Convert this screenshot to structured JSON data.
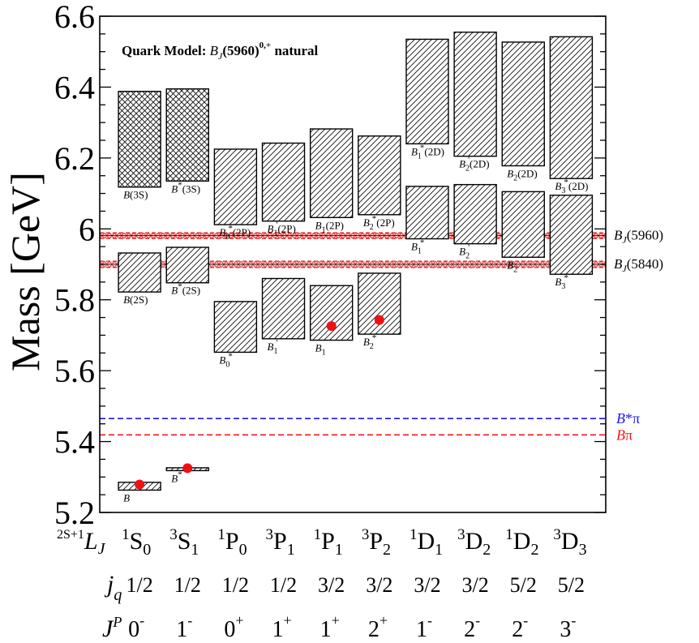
{
  "chart_data": {
    "type": "bar",
    "title": "Quark Model: B_J(5960)^{0,+} natural",
    "title_parts": {
      "prefix": "Quark Model: ",
      "sym": "B",
      "sub": "J",
      "mid": "(5960)",
      "sup": "0,+",
      "suffix": " natural"
    },
    "ylabel": "Mass [GeV]",
    "ylim": [
      5.2,
      6.6
    ],
    "yticks": [
      "5.2",
      "5.4",
      "5.6",
      "5.8",
      "6",
      "6.2",
      "6.4",
      "6.6"
    ],
    "grid": false,
    "columns": [
      {
        "s": "1",
        "L": "S",
        "j": "0",
        "jq": "1/2",
        "P": "0",
        "Ps": "-"
      },
      {
        "s": "3",
        "L": "S",
        "j": "1",
        "jq": "1/2",
        "P": "1",
        "Ps": "-"
      },
      {
        "s": "1",
        "L": "P",
        "j": "0",
        "jq": "1/2",
        "P": "0",
        "Ps": "+"
      },
      {
        "s": "3",
        "L": "P",
        "j": "1",
        "jq": "1/2",
        "P": "1",
        "Ps": "+"
      },
      {
        "s": "1",
        "L": "P",
        "j": "1",
        "jq": "3/2",
        "P": "1",
        "Ps": "+"
      },
      {
        "s": "3",
        "L": "P",
        "j": "2",
        "jq": "3/2",
        "P": "2",
        "Ps": "+"
      },
      {
        "s": "1",
        "L": "D",
        "j": "1",
        "jq": "3/2",
        "P": "1",
        "Ps": "-"
      },
      {
        "s": "3",
        "L": "D",
        "j": "2",
        "jq": "3/2",
        "P": "2",
        "Ps": "-"
      },
      {
        "s": "1",
        "L": "D",
        "j": "2",
        "jq": "5/2",
        "P": "2",
        "Ps": "-"
      },
      {
        "s": "3",
        "L": "D",
        "j": "3",
        "jq": "5/2",
        "P": "3",
        "Ps": "-"
      }
    ],
    "row_labels": {
      "lj_pre": "2S+1",
      "lj_L": "L",
      "lj_J": "J",
      "jq_j": "j",
      "jq_q": "q",
      "jp_J": "J",
      "jp_P": "P"
    },
    "states": [
      {
        "col": 0,
        "low": 5.263,
        "high": 5.285,
        "hatch": "diag",
        "label": {
          "b": "B",
          "sub": "",
          "sup": "",
          "tail": ""
        },
        "label_pos": "below"
      },
      {
        "col": 1,
        "low": 5.318,
        "high": 5.326,
        "hatch": "diag",
        "label": {
          "b": "B",
          "sub": "",
          "sup": "*",
          "tail": ""
        },
        "label_pos": "below"
      },
      {
        "col": 0,
        "low": 5.822,
        "high": 5.932,
        "hatch": "diag",
        "label": {
          "b": "B",
          "sub": "",
          "sup": "",
          "tail": "(2S)"
        },
        "label_pos": "below"
      },
      {
        "col": 1,
        "low": 5.848,
        "high": 5.948,
        "hatch": "diag",
        "label": {
          "b": "B",
          "sub": "",
          "sup": "*",
          "tail": "(2S)"
        },
        "label_pos": "below"
      },
      {
        "col": 0,
        "low": 6.118,
        "high": 6.388,
        "hatch": "cross",
        "label": {
          "b": "B",
          "sub": "",
          "sup": "",
          "tail": "(3S)"
        },
        "label_pos": "below"
      },
      {
        "col": 1,
        "low": 6.135,
        "high": 6.395,
        "hatch": "cross",
        "label": {
          "b": "B",
          "sub": "",
          "sup": "*",
          "tail": "(3S)"
        },
        "label_pos": "below"
      },
      {
        "col": 2,
        "low": 5.652,
        "high": 5.795,
        "hatch": "diag",
        "label": {
          "b": "B",
          "sub": "0",
          "sup": "*",
          "tail": ""
        },
        "label_pos": "below"
      },
      {
        "col": 3,
        "low": 5.69,
        "high": 5.86,
        "hatch": "diag",
        "label": {
          "b": "B",
          "sub": "1",
          "sup": "'",
          "tail": ""
        },
        "label_pos": "below"
      },
      {
        "col": 4,
        "low": 5.686,
        "high": 5.84,
        "hatch": "diag",
        "label": {
          "b": "B",
          "sub": "1",
          "sup": "",
          "tail": ""
        },
        "label_pos": "below"
      },
      {
        "col": 5,
        "low": 5.703,
        "high": 5.875,
        "hatch": "diag",
        "label": {
          "b": "B",
          "sub": "2",
          "sup": "*",
          "tail": ""
        },
        "label_pos": "below"
      },
      {
        "col": 2,
        "low": 6.012,
        "high": 6.225,
        "hatch": "diag",
        "label": {
          "b": "B",
          "sub": "0",
          "sup": "*",
          "tail": "(2P)"
        },
        "label_pos": "below"
      },
      {
        "col": 3,
        "low": 6.022,
        "high": 6.242,
        "hatch": "diag",
        "label": {
          "b": "B",
          "sub": "1",
          "sup": "'",
          "tail": "(2P)"
        },
        "label_pos": "below"
      },
      {
        "col": 4,
        "low": 6.032,
        "high": 6.282,
        "hatch": "diag",
        "label": {
          "b": "B",
          "sub": "1",
          "sup": "",
          "tail": "(2P)"
        },
        "label_pos": "below"
      },
      {
        "col": 5,
        "low": 6.04,
        "high": 6.262,
        "hatch": "diag",
        "label": {
          "b": "B",
          "sub": "2",
          "sup": "*",
          "tail": "(2P)"
        },
        "label_pos": "below"
      },
      {
        "col": 6,
        "low": 5.972,
        "high": 6.12,
        "hatch": "diag",
        "label": {
          "b": "B",
          "sub": "1",
          "sup": "*",
          "tail": ""
        },
        "label_pos": "below"
      },
      {
        "col": 7,
        "low": 5.958,
        "high": 6.125,
        "hatch": "diag",
        "label": {
          "b": "B",
          "sub": "2",
          "sup": "'",
          "tail": ""
        },
        "label_pos": "below"
      },
      {
        "col": 8,
        "low": 5.92,
        "high": 6.105,
        "hatch": "diag",
        "label": {
          "b": "B",
          "sub": "2",
          "sup": "",
          "tail": ""
        },
        "label_pos": "below"
      },
      {
        "col": 9,
        "low": 5.872,
        "high": 6.095,
        "hatch": "diag",
        "label": {
          "b": "B",
          "sub": "3",
          "sup": "*",
          "tail": ""
        },
        "label_pos": "below"
      },
      {
        "col": 6,
        "low": 6.24,
        "high": 6.535,
        "hatch": "diag",
        "label": {
          "b": "B",
          "sub": "1",
          "sup": "*",
          "tail": "(2D)"
        },
        "label_pos": "below"
      },
      {
        "col": 7,
        "low": 6.205,
        "high": 6.555,
        "hatch": "diag",
        "label": {
          "b": "B",
          "sub": "2",
          "sup": "'",
          "tail": "(2D)"
        },
        "label_pos": "below"
      },
      {
        "col": 8,
        "low": 6.178,
        "high": 6.527,
        "hatch": "diag",
        "label": {
          "b": "B",
          "sub": "2",
          "sup": "",
          "tail": "(2D)"
        },
        "label_pos": "below"
      },
      {
        "col": 9,
        "low": 6.142,
        "high": 6.542,
        "hatch": "diag",
        "label": {
          "b": "B",
          "sub": "3",
          "sup": "*",
          "tail": "(2D)"
        },
        "label_pos": "below"
      }
    ],
    "exp_points": [
      {
        "col": 0,
        "mass": 5.279
      },
      {
        "col": 1,
        "mass": 5.325
      },
      {
        "col": 4,
        "mass": 5.726
      },
      {
        "col": 5,
        "mass": 5.743
      }
    ],
    "exp_bands": [
      {
        "name_b": "B",
        "name_sub": "J",
        "name_tail": "(5960)",
        "mass": 5.981,
        "half_width": 0.008,
        "color": "#e01010"
      },
      {
        "name_b": "B",
        "name_sub": "J",
        "name_tail": "(5840)",
        "mass": 5.9,
        "half_width": 0.009,
        "color": "#e01010"
      }
    ],
    "thresholds": [
      {
        "name_a": "B",
        "name_b": "*",
        "name_c": "π",
        "mass": 5.465,
        "color": "#1a1aee"
      },
      {
        "name_a": "B",
        "name_b": "",
        "name_c": "π",
        "mass": 5.419,
        "color": "#ee1a1a"
      }
    ],
    "dot_color": "#ee1111"
  }
}
